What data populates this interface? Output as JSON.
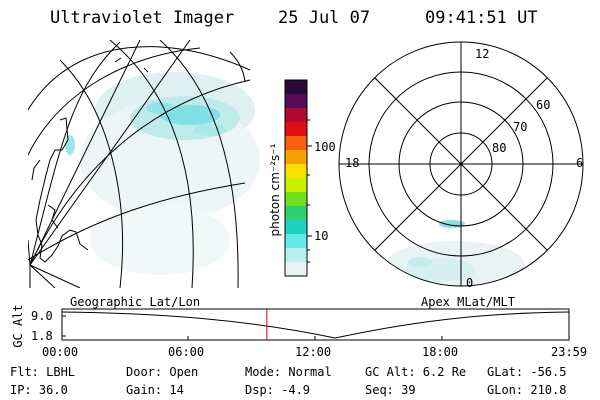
{
  "header": {
    "instrument": "Ultraviolet Imager",
    "date": "25 Jul 07",
    "time": "09:41:51 UT"
  },
  "colorbar": {
    "unit_label": "photon cm⁻²s⁻¹",
    "ticks": [
      "100",
      "10"
    ],
    "colors": [
      "#2a0a3a",
      "#5a0a5a",
      "#b00a30",
      "#e01010",
      "#f86010",
      "#f8a000",
      "#f8e000",
      "#c8f000",
      "#70e020",
      "#30d070",
      "#20d0c0",
      "#60e8e8",
      "#b8f0f0",
      "#e8f4f4"
    ]
  },
  "left_map": {
    "projection_label": "Geographic Lat/Lon"
  },
  "right_map": {
    "projection_label": "Apex MLat/MLT",
    "mlt_labels": [
      "12",
      "18",
      "6",
      "0"
    ],
    "mlat_labels": [
      "60",
      "70",
      "80"
    ]
  },
  "timeline": {
    "ylabel": "GC Alt",
    "y_ticks": [
      "9.0",
      "1.8"
    ],
    "x_ticks": [
      "00:00",
      "06:00",
      "12:00",
      "18:00",
      "23:59"
    ],
    "current_time_fraction": 0.404
  },
  "info": {
    "flt": "Flt: LBHL",
    "ip": "IP: 36.0",
    "door": "Door: Open",
    "gain": "Gain: 14",
    "mode": "Mode: Normal",
    "dsp": "Dsp:   -4.9",
    "gc_alt": "GC Alt: 6.2 Re",
    "seq": "Seq: 39",
    "glat": "GLat: -56.5",
    "glon": "GLon: 210.8"
  }
}
